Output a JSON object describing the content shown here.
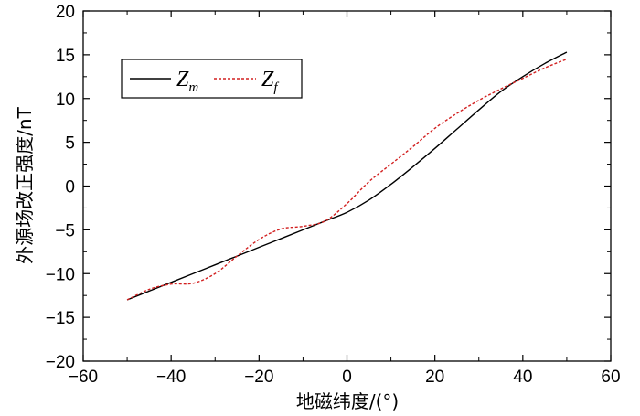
{
  "chart_data": {
    "type": "line",
    "title": "",
    "xlabel": "地磁纬度/(°)",
    "ylabel": "外源场改正强度/nT",
    "xlim": [
      -60,
      60
    ],
    "ylim": [
      -20,
      20
    ],
    "xticks": [
      -60,
      -40,
      -20,
      0,
      20,
      40,
      60
    ],
    "yticks": [
      -20,
      -15,
      -10,
      -5,
      0,
      5,
      10,
      15,
      20
    ],
    "xtick_labels": [
      "−60",
      "−40",
      "−20",
      "0",
      "20",
      "40",
      "60"
    ],
    "ytick_labels": [
      "−20",
      "−15",
      "−10",
      "−5",
      "0",
      "5",
      "10",
      "15",
      "20"
    ],
    "grid": false,
    "legend_position": "top-left",
    "series": [
      {
        "key": "Zm",
        "legend_main": "Z",
        "legend_sub": "m",
        "color": "#000000",
        "style": "solid",
        "x": [
          -50,
          -45,
          -40,
          -35,
          -30,
          -25,
          -20,
          -15,
          -10,
          -5,
          0,
          5,
          10,
          15,
          20,
          25,
          30,
          35,
          40,
          45,
          50
        ],
        "y": [
          -13.0,
          -12.0,
          -11.0,
          -10.0,
          -9.0,
          -8.0,
          -7.0,
          -6.0,
          -5.0,
          -4.0,
          -3.0,
          -1.6,
          0.2,
          2.2,
          4.3,
          6.5,
          8.7,
          10.8,
          12.5,
          14.0,
          15.3
        ]
      },
      {
        "key": "Zf",
        "legend_main": "Z",
        "legend_sub": "f",
        "color": "#d22020",
        "style": "dashed",
        "x": [
          -50,
          -45,
          -40,
          -35,
          -30,
          -25,
          -20,
          -15,
          -10,
          -5,
          0,
          5,
          10,
          15,
          20,
          25,
          30,
          35,
          40,
          45,
          50
        ],
        "y": [
          -13.0,
          -11.8,
          -11.2,
          -11.1,
          -10.0,
          -8.0,
          -6.1,
          -4.9,
          -4.6,
          -4.0,
          -2.0,
          0.5,
          2.5,
          4.5,
          6.6,
          8.3,
          9.8,
          11.1,
          12.3,
          13.5,
          14.5
        ]
      }
    ]
  }
}
